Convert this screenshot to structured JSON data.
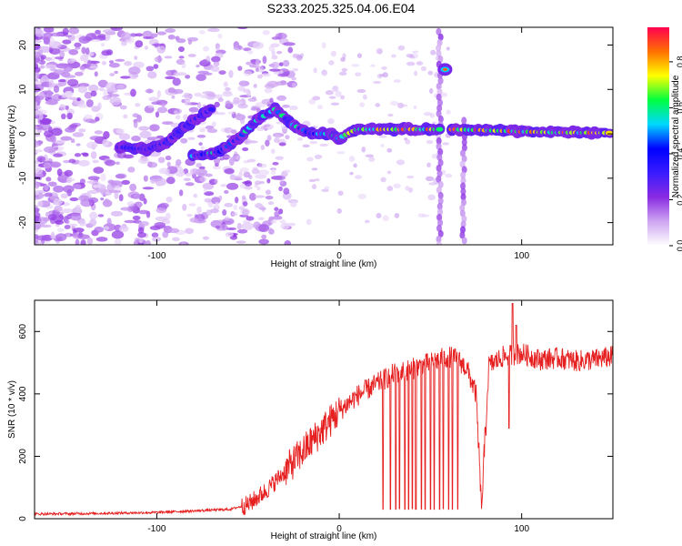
{
  "title": "S233.2025.325.04.06.E04",
  "chart_data": [
    {
      "id": "spectrogram",
      "type": "heatmap",
      "xlabel": "Height of straight line (km)",
      "ylabel": "Frequency (Hz)",
      "xlim": [
        -167,
        150
      ],
      "ylim": [
        -25,
        24
      ],
      "xticks": [
        -100,
        0,
        100
      ],
      "yticks": [
        -20,
        -10,
        0,
        10,
        20
      ],
      "colorbar": {
        "label": "Normalized spectral amplitude",
        "range": [
          0,
          0.95
        ],
        "ticks": [
          0.0,
          0.2,
          0.4,
          0.6,
          0.8
        ],
        "stops": [
          "#ffffff",
          "#cfa6f2",
          "#8a2be2",
          "#3a1cff",
          "#0000ff",
          "#00d8ff",
          "#00ff40",
          "#ffff00",
          "#ff7000",
          "#ff0050"
        ]
      },
      "ridges": [
        {
          "name": "main-tone",
          "points": [
            [
              -120,
              -3
            ],
            [
              -105,
              -3.5
            ],
            [
              -95,
              -2
            ],
            [
              -80,
              3
            ],
            [
              -70,
              5.5
            ]
          ]
        },
        {
          "name": "rising-arc",
          "points": [
            [
              -80,
              -5
            ],
            [
              -65,
              -4
            ],
            [
              -55,
              -1
            ],
            [
              -45,
              3
            ],
            [
              -35,
              5.5
            ],
            [
              -25,
              2
            ],
            [
              -15,
              0
            ],
            [
              -5,
              0
            ],
            [
              0,
              -1
            ],
            [
              10,
              1
            ],
            [
              30,
              1
            ],
            [
              55,
              1
            ]
          ]
        },
        {
          "name": "post-gap-tone",
          "points": [
            [
              62,
              1
            ],
            [
              80,
              0.8
            ],
            [
              100,
              0.5
            ],
            [
              120,
              0.3
            ],
            [
              148,
              0.2
            ]
          ]
        },
        {
          "name": "spike-blob",
          "points": [
            [
              58,
              14.5
            ]
          ]
        },
        {
          "name": "vertical-streak-1",
          "points": [
            [
              55,
              23
            ],
            [
              55,
              -25
            ]
          ]
        },
        {
          "name": "vertical-streak-2",
          "points": [
            [
              68,
              3
            ],
            [
              68,
              -25
            ]
          ]
        }
      ]
    },
    {
      "id": "snr",
      "type": "line",
      "xlabel": "Height of straight line (km)",
      "ylabel": "SNR (10 * v/v)",
      "xlim": [
        -167,
        150
      ],
      "ylim": [
        0,
        700
      ],
      "xticks": [
        -100,
        0,
        100
      ],
      "yticks": [
        0,
        200,
        400,
        600
      ],
      "color": "#e62020",
      "envelope_x": [
        -167,
        -130,
        -100,
        -80,
        -60,
        -50,
        -40,
        -30,
        -20,
        -10,
        0,
        10,
        20,
        30,
        40,
        50,
        60,
        65,
        70,
        75,
        78,
        82,
        90,
        100,
        110,
        120,
        130,
        140,
        150
      ],
      "envelope_y": [
        15,
        17,
        20,
        25,
        30,
        45,
        90,
        150,
        215,
        280,
        345,
        395,
        430,
        465,
        480,
        500,
        520,
        510,
        480,
        400,
        30,
        490,
        520,
        530,
        510,
        515,
        505,
        510,
        520
      ],
      "dropouts": [
        [
          24,
          30
        ],
        [
          28,
          30
        ],
        [
          31,
          30
        ],
        [
          33,
          32
        ],
        [
          36,
          30
        ],
        [
          38,
          30
        ],
        [
          40,
          32
        ],
        [
          42,
          30
        ],
        [
          45,
          31
        ],
        [
          47,
          30
        ],
        [
          50,
          30
        ],
        [
          52,
          30
        ],
        [
          55,
          30
        ],
        [
          57,
          32
        ],
        [
          60,
          30
        ],
        [
          62,
          30
        ],
        [
          65,
          31
        ]
      ],
      "spikes": [
        [
          95,
          690
        ],
        [
          97,
          620
        ],
        [
          93,
          290
        ]
      ]
    }
  ]
}
